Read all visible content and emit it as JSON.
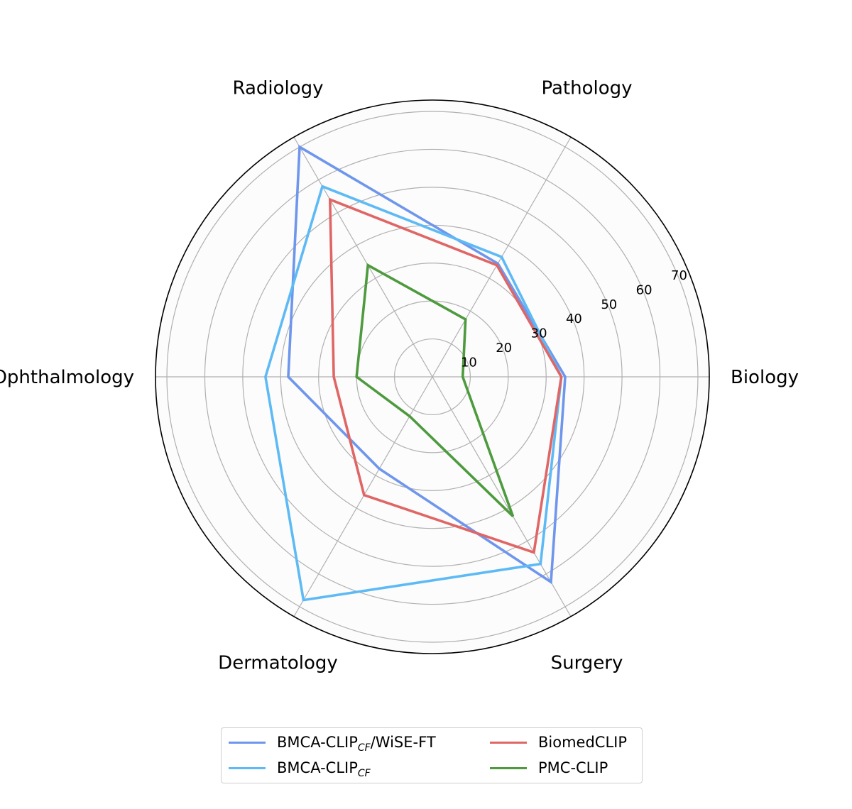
{
  "chart_data": {
    "type": "radar",
    "axes": [
      "Biology",
      "Pathology",
      "Radiology",
      "Ophthalmology",
      "Dermatology",
      "Surgery"
    ],
    "rmax": 73,
    "rticks": [
      10,
      20,
      30,
      40,
      50,
      60,
      70
    ],
    "grid": true,
    "legend_position": "bottom",
    "series": [
      {
        "name": "BMCA-CLIP",
        "name_sub": "CF",
        "name_suffix": "/WiSE-FT",
        "color": "#6e96ec",
        "values": [
          35,
          34.5,
          70,
          38,
          28,
          62.5
        ]
      },
      {
        "name": "BMCA-CLIP",
        "name_sub": "CF",
        "name_suffix": "",
        "color": "#5ebaf5",
        "values": [
          34,
          36.5,
          58,
          44,
          68,
          57
        ]
      },
      {
        "name": "BiomedCLIP",
        "name_sub": "",
        "name_suffix": "",
        "color": "#e06666",
        "values": [
          34,
          34,
          54,
          26,
          36,
          53.5
        ]
      },
      {
        "name": "PMC-CLIP",
        "name_sub": "",
        "name_suffix": "",
        "color": "#4e9a3e",
        "values": [
          8,
          17.5,
          34,
          20,
          12,
          42.5
        ]
      }
    ]
  }
}
